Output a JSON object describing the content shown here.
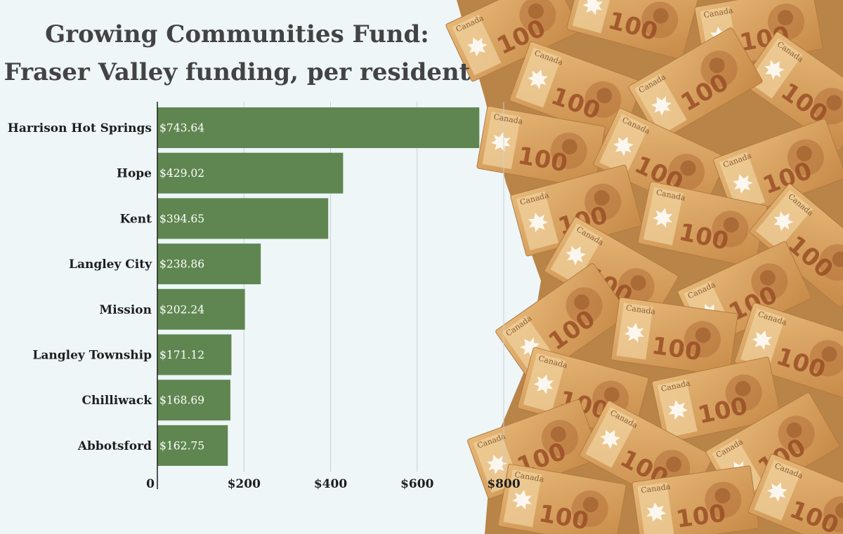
{
  "chart_data": {
    "type": "bar",
    "orientation": "horizontal",
    "title": "Growing Communities Fund:",
    "subtitle": "Fraser Valley funding, per resident",
    "categories": [
      "Harrison Hot Springs",
      "Hope",
      "Kent",
      "Langley City",
      "Mission",
      "Langley Township",
      "Chilliwack",
      "Abbotsford"
    ],
    "values": [
      743.64,
      429.02,
      394.65,
      238.86,
      202.24,
      171.12,
      168.69,
      162.75
    ],
    "value_labels": [
      "$743.64",
      "$429.02",
      "$394.65",
      "$238.86",
      "$202.24",
      "$171.12",
      "$168.69",
      "$162.75"
    ],
    "x_ticks": [
      0,
      200,
      400,
      600,
      800
    ],
    "x_tick_labels": [
      "0",
      "$200",
      "$400",
      "$600",
      "$800"
    ],
    "xlim": [
      0,
      800
    ],
    "xlabel": "",
    "ylabel": "",
    "grid": "vertical",
    "bar_color": "#5f8650"
  },
  "background": {
    "color": "#eef6f8",
    "decoration": "pile of Canadian 100 dollar banknotes on the right side"
  }
}
